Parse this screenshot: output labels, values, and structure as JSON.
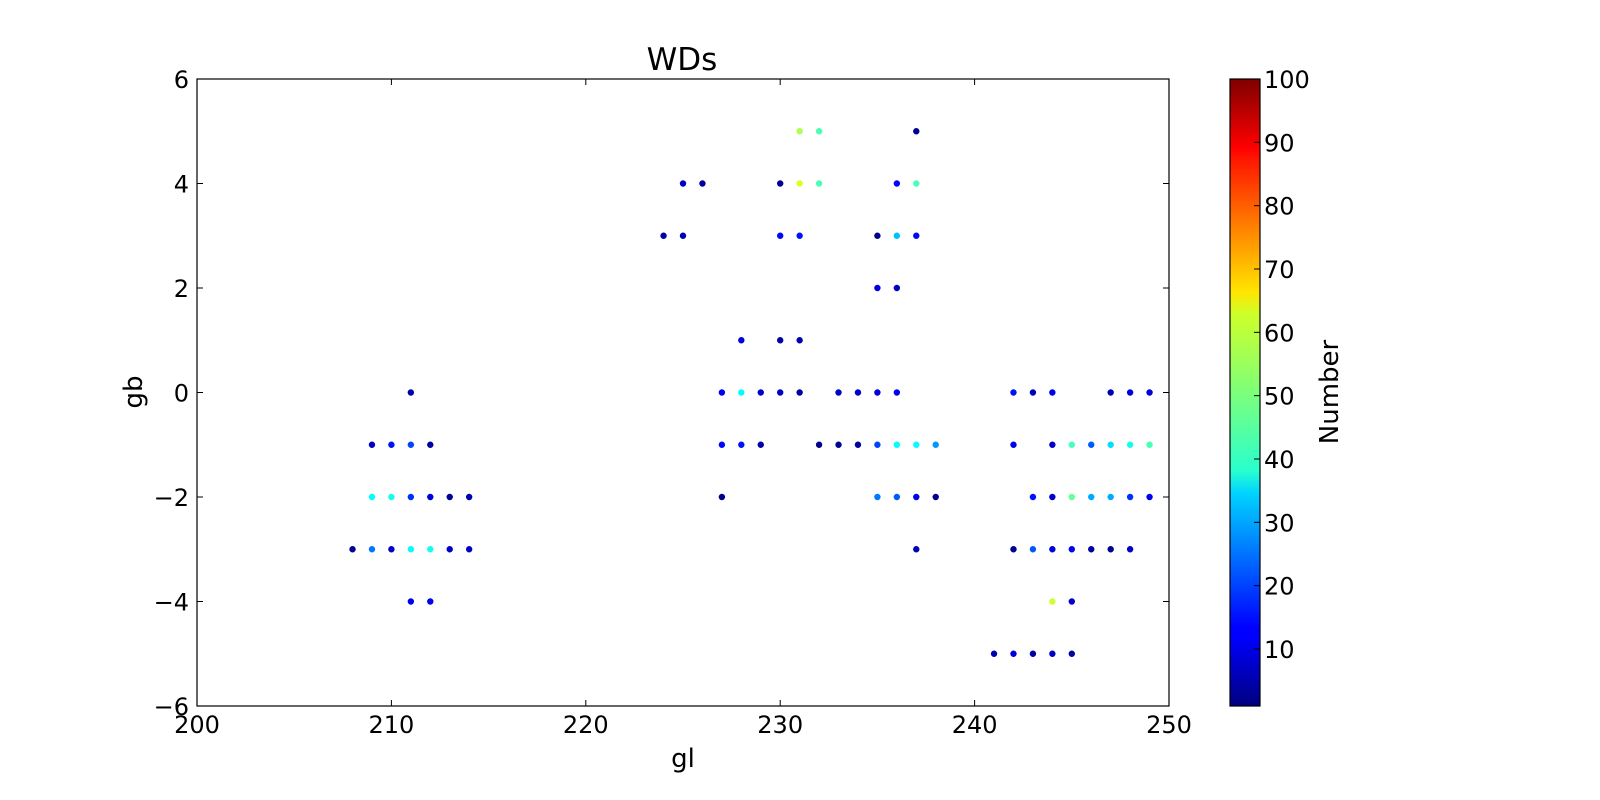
{
  "chart_data": {
    "type": "scatter",
    "title": "WDs",
    "xlabel": "gl",
    "ylabel": "gb",
    "xlim": [
      200,
      250
    ],
    "ylim": [
      -6,
      6
    ],
    "xticks": [
      "200",
      "210",
      "220",
      "230",
      "240",
      "250"
    ],
    "yticks": [
      "6",
      "4",
      "2",
      "0",
      "−2",
      "−4",
      "−6"
    ],
    "grid": false,
    "colorbar": {
      "label": "Number",
      "range": [
        1,
        100
      ],
      "colormap": "jet",
      "ticks": [
        "100",
        "90",
        "80",
        "70",
        "60",
        "50",
        "40",
        "30",
        "20",
        "10"
      ]
    },
    "points": [
      {
        "x": 208,
        "y": -3,
        "c": 3
      },
      {
        "x": 209,
        "y": -1,
        "c": 8
      },
      {
        "x": 209,
        "y": -2,
        "c": 38
      },
      {
        "x": 209,
        "y": -3,
        "c": 25
      },
      {
        "x": 210,
        "y": -1,
        "c": 15
      },
      {
        "x": 210,
        "y": -2,
        "c": 40
      },
      {
        "x": 210,
        "y": -3,
        "c": 8
      },
      {
        "x": 211,
        "y": 0,
        "c": 5
      },
      {
        "x": 211,
        "y": -1,
        "c": 20
      },
      {
        "x": 211,
        "y": -2,
        "c": 18
      },
      {
        "x": 211,
        "y": -3,
        "c": 38
      },
      {
        "x": 211,
        "y": -4,
        "c": 12
      },
      {
        "x": 212,
        "y": -1,
        "c": 4
      },
      {
        "x": 212,
        "y": -2,
        "c": 10
      },
      {
        "x": 212,
        "y": -3,
        "c": 40
      },
      {
        "x": 212,
        "y": -4,
        "c": 12
      },
      {
        "x": 213,
        "y": -2,
        "c": 3
      },
      {
        "x": 213,
        "y": -3,
        "c": 8
      },
      {
        "x": 214,
        "y": -2,
        "c": 6
      },
      {
        "x": 214,
        "y": -3,
        "c": 8
      },
      {
        "x": 224,
        "y": 3,
        "c": 5
      },
      {
        "x": 225,
        "y": 4,
        "c": 8
      },
      {
        "x": 225,
        "y": 3,
        "c": 6
      },
      {
        "x": 226,
        "y": 4,
        "c": 4
      },
      {
        "x": 227,
        "y": 0,
        "c": 12
      },
      {
        "x": 227,
        "y": -1,
        "c": 14
      },
      {
        "x": 227,
        "y": -2,
        "c": 2
      },
      {
        "x": 228,
        "y": 1,
        "c": 10
      },
      {
        "x": 228,
        "y": 0,
        "c": 38
      },
      {
        "x": 228,
        "y": -1,
        "c": 15
      },
      {
        "x": 229,
        "y": 0,
        "c": 8
      },
      {
        "x": 229,
        "y": -1,
        "c": 5
      },
      {
        "x": 230,
        "y": 4,
        "c": 3
      },
      {
        "x": 230,
        "y": 3,
        "c": 14
      },
      {
        "x": 230,
        "y": 1,
        "c": 4
      },
      {
        "x": 230,
        "y": 0,
        "c": 8
      },
      {
        "x": 231,
        "y": 5,
        "c": 55
      },
      {
        "x": 231,
        "y": 4,
        "c": 60
      },
      {
        "x": 231,
        "y": 3,
        "c": 15
      },
      {
        "x": 231,
        "y": 1,
        "c": 6
      },
      {
        "x": 231,
        "y": 0,
        "c": 4
      },
      {
        "x": 232,
        "y": 5,
        "c": 45
      },
      {
        "x": 232,
        "y": 4,
        "c": 45
      },
      {
        "x": 232,
        "y": -1,
        "c": 2
      },
      {
        "x": 233,
        "y": 0,
        "c": 8
      },
      {
        "x": 233,
        "y": -1,
        "c": 3
      },
      {
        "x": 234,
        "y": 0,
        "c": 8
      },
      {
        "x": 234,
        "y": -1,
        "c": 4
      },
      {
        "x": 235,
        "y": 3,
        "c": 2
      },
      {
        "x": 235,
        "y": 2,
        "c": 10
      },
      {
        "x": 235,
        "y": 0,
        "c": 10
      },
      {
        "x": 235,
        "y": -1,
        "c": 20
      },
      {
        "x": 235,
        "y": -2,
        "c": 25
      },
      {
        "x": 236,
        "y": 4,
        "c": 14
      },
      {
        "x": 236,
        "y": 3,
        "c": 32
      },
      {
        "x": 236,
        "y": 2,
        "c": 8
      },
      {
        "x": 236,
        "y": 0,
        "c": 12
      },
      {
        "x": 236,
        "y": -1,
        "c": 38
      },
      {
        "x": 236,
        "y": -2,
        "c": 22
      },
      {
        "x": 237,
        "y": 5,
        "c": 3
      },
      {
        "x": 237,
        "y": 4,
        "c": 45
      },
      {
        "x": 237,
        "y": 3,
        "c": 14
      },
      {
        "x": 237,
        "y": -1,
        "c": 38
      },
      {
        "x": 237,
        "y": -2,
        "c": 12
      },
      {
        "x": 237,
        "y": -3,
        "c": 6
      },
      {
        "x": 238,
        "y": -1,
        "c": 28
      },
      {
        "x": 238,
        "y": -2,
        "c": 2
      },
      {
        "x": 241,
        "y": -5,
        "c": 6
      },
      {
        "x": 242,
        "y": 0,
        "c": 15
      },
      {
        "x": 242,
        "y": -1,
        "c": 12
      },
      {
        "x": 242,
        "y": -3,
        "c": 3
      },
      {
        "x": 242,
        "y": -5,
        "c": 10
      },
      {
        "x": 243,
        "y": 0,
        "c": 6
      },
      {
        "x": 243,
        "y": -2,
        "c": 15
      },
      {
        "x": 243,
        "y": -3,
        "c": 22
      },
      {
        "x": 243,
        "y": -5,
        "c": 4
      },
      {
        "x": 244,
        "y": 0,
        "c": 12
      },
      {
        "x": 244,
        "y": -1,
        "c": 8
      },
      {
        "x": 244,
        "y": -2,
        "c": 8
      },
      {
        "x": 244,
        "y": -3,
        "c": 10
      },
      {
        "x": 244,
        "y": -4,
        "c": 58
      },
      {
        "x": 244,
        "y": -5,
        "c": 8
      },
      {
        "x": 245,
        "y": -1,
        "c": 45
      },
      {
        "x": 245,
        "y": -2,
        "c": 48
      },
      {
        "x": 245,
        "y": -3,
        "c": 12
      },
      {
        "x": 245,
        "y": -4,
        "c": 8
      },
      {
        "x": 245,
        "y": -5,
        "c": 4
      },
      {
        "x": 246,
        "y": -1,
        "c": 22
      },
      {
        "x": 246,
        "y": -2,
        "c": 30
      },
      {
        "x": 246,
        "y": -3,
        "c": 4
      },
      {
        "x": 247,
        "y": 0,
        "c": 6
      },
      {
        "x": 247,
        "y": -1,
        "c": 35
      },
      {
        "x": 247,
        "y": -2,
        "c": 30
      },
      {
        "x": 247,
        "y": -3,
        "c": 3
      },
      {
        "x": 248,
        "y": 0,
        "c": 10
      },
      {
        "x": 248,
        "y": -1,
        "c": 40
      },
      {
        "x": 248,
        "y": -2,
        "c": 18
      },
      {
        "x": 248,
        "y": -3,
        "c": 8
      },
      {
        "x": 249,
        "y": 0,
        "c": 10
      },
      {
        "x": 249,
        "y": -1,
        "c": 45
      },
      {
        "x": 249,
        "y": -2,
        "c": 12
      }
    ]
  }
}
